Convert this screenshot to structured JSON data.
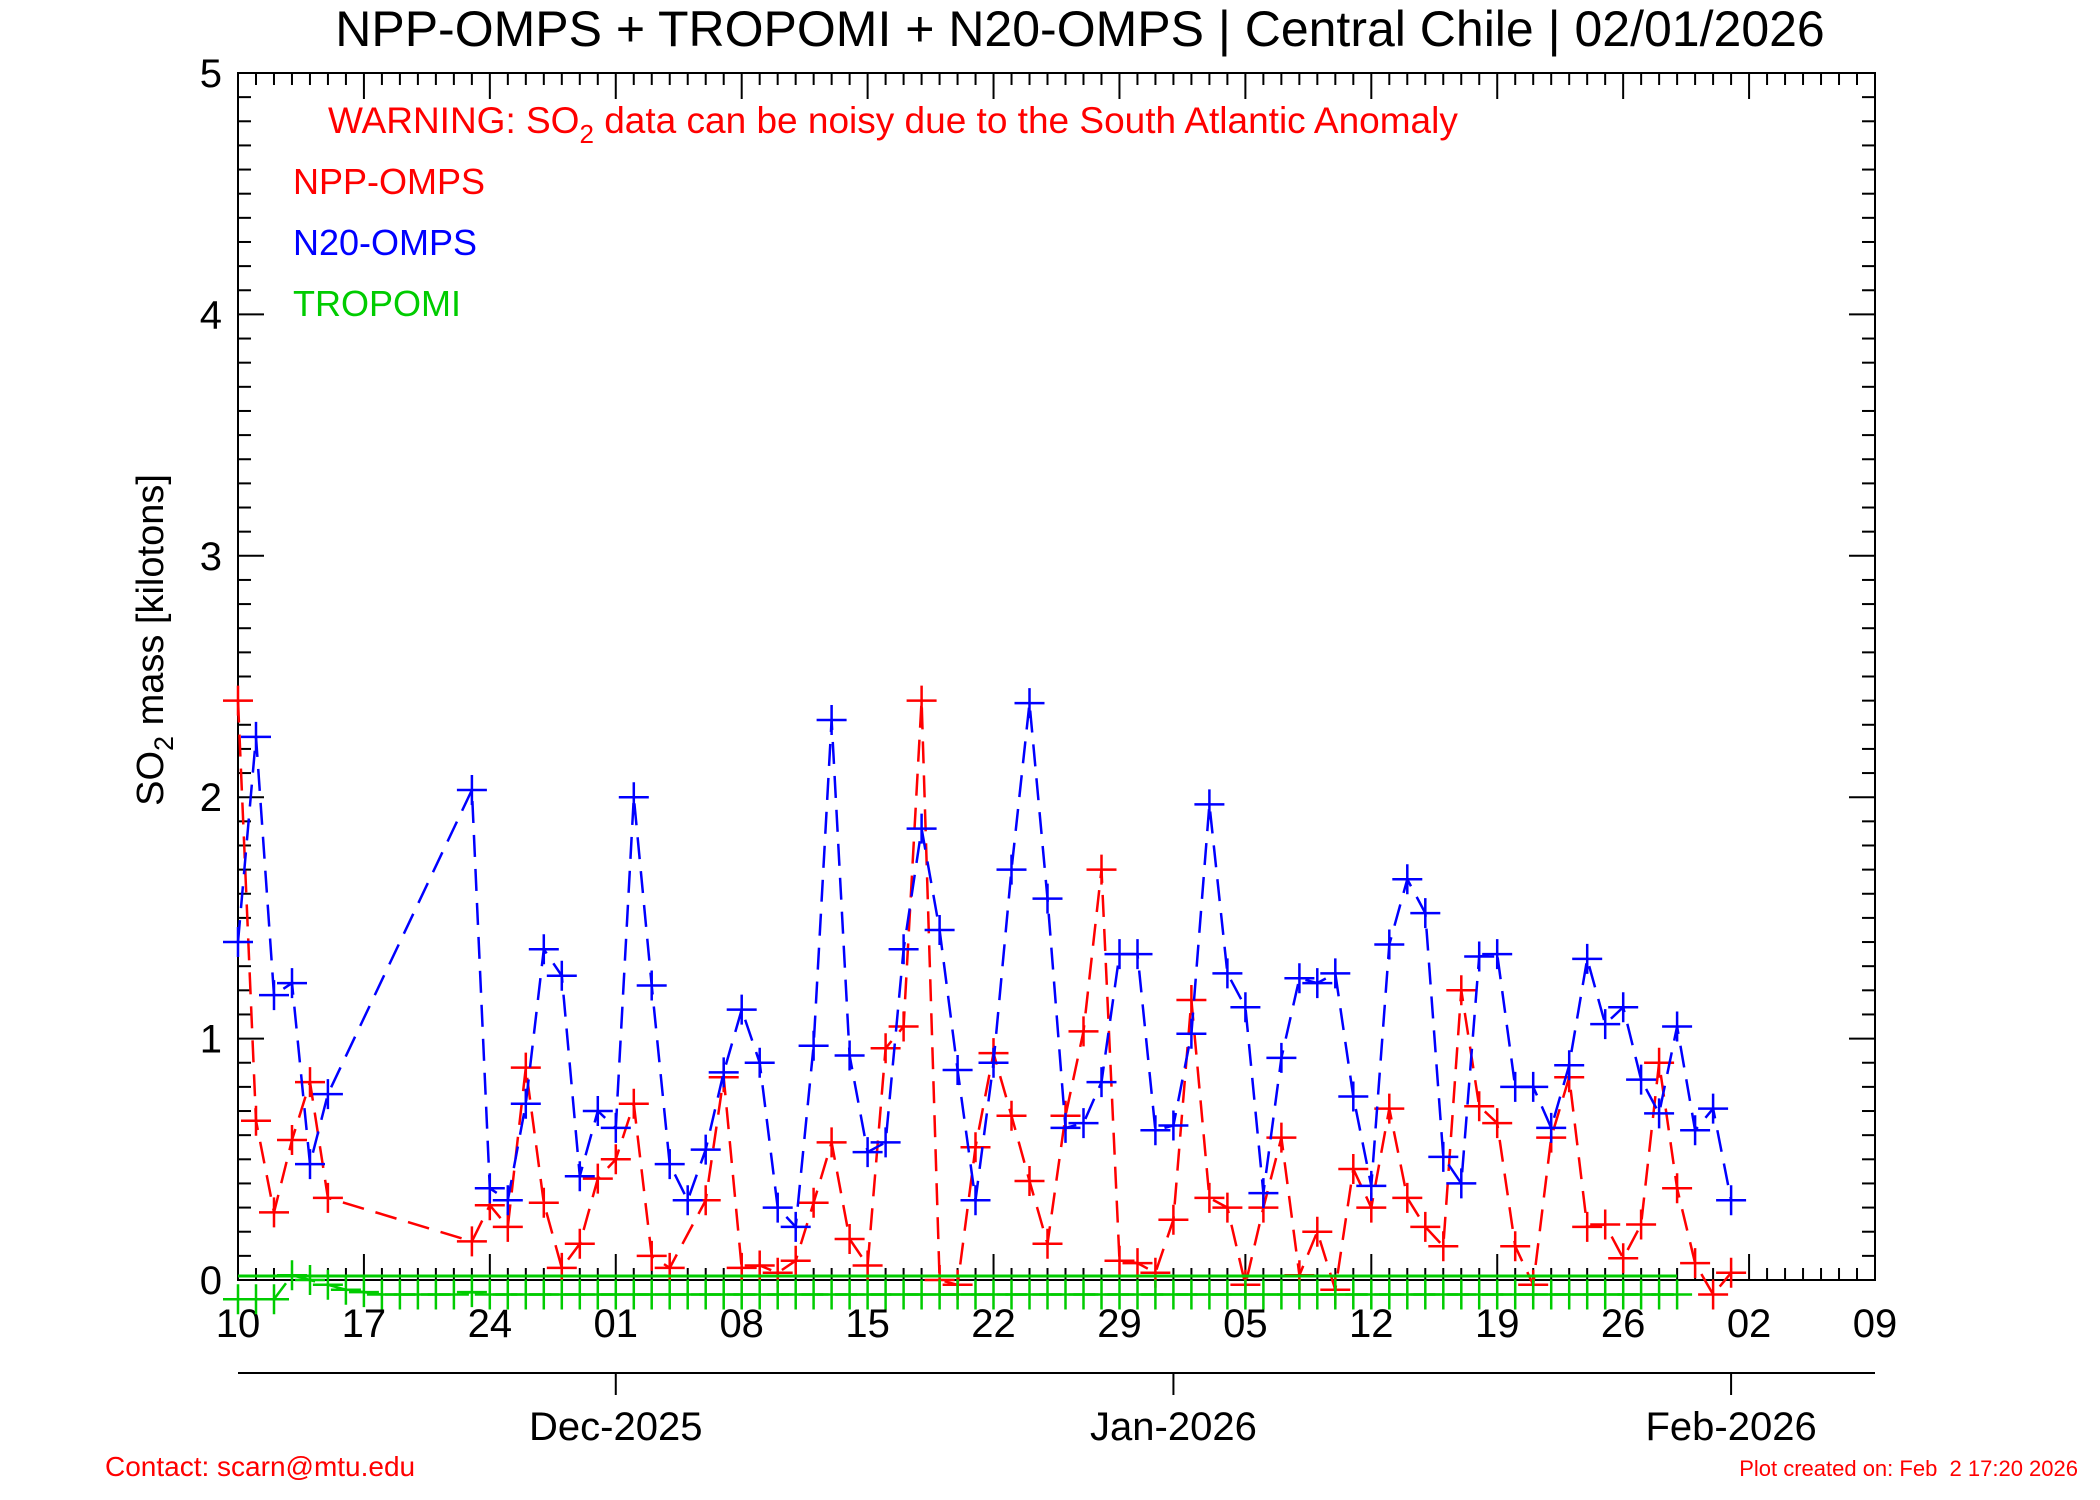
{
  "chart_data": {
    "type": "line",
    "title": "NPP-OMPS + TROPOMI + N20-OMPS | Central Chile | 02/01/2026",
    "warning": {
      "prefix": "WARNING: SO",
      "subscript": "2",
      "suffix": " data can be noisy due to the South Atlantic Anomaly"
    },
    "ylabel": {
      "prefix": "SO",
      "subscript": "2",
      "suffix": " mass [kilotons]"
    },
    "xlabel": "",
    "ylim": [
      0,
      5
    ],
    "xlim": [
      "2025-11-10",
      "2026-02-09"
    ],
    "grid": false,
    "y_ticks": [
      "0",
      "1",
      "2",
      "3",
      "4",
      "5"
    ],
    "x_ticks": [
      {
        "date": "2025-11-10",
        "label": "10"
      },
      {
        "date": "2025-11-17",
        "label": "17"
      },
      {
        "date": "2025-11-24",
        "label": "24"
      },
      {
        "date": "2025-12-01",
        "label": "01"
      },
      {
        "date": "2025-12-08",
        "label": "08"
      },
      {
        "date": "2025-12-15",
        "label": "15"
      },
      {
        "date": "2025-12-22",
        "label": "22"
      },
      {
        "date": "2025-12-29",
        "label": "29"
      },
      {
        "date": "2026-01-05",
        "label": "05"
      },
      {
        "date": "2026-01-12",
        "label": "12"
      },
      {
        "date": "2026-01-19",
        "label": "19"
      },
      {
        "date": "2026-01-26",
        "label": "26"
      },
      {
        "date": "2026-02-02",
        "label": "02"
      },
      {
        "date": "2026-02-09",
        "label": "09"
      }
    ],
    "month_ticks": [
      {
        "date": "2025-12-01",
        "label": "Dec-2025"
      },
      {
        "date": "2026-01-01",
        "label": "Jan-2026"
      },
      {
        "date": "2026-02-01",
        "label": "Feb-2026"
      }
    ],
    "legend": {
      "placement": "top-left"
    },
    "series": [
      {
        "name": "NPP-OMPS",
        "color": "#ff0000",
        "points": [
          [
            "2025-11-10",
            2.4
          ],
          [
            "2025-11-11",
            0.66
          ],
          [
            "2025-11-12",
            0.28
          ],
          [
            "2025-11-13",
            0.58
          ],
          [
            "2025-11-14",
            0.82
          ],
          [
            "2025-11-15",
            0.34
          ],
          [
            "2025-11-23",
            0.16
          ],
          [
            "2025-11-24",
            0.31
          ],
          [
            "2025-11-25",
            0.22
          ],
          [
            "2025-11-26",
            0.88
          ],
          [
            "2025-11-27",
            0.32
          ],
          [
            "2025-11-28",
            0.05
          ],
          [
            "2025-11-29",
            0.15
          ],
          [
            "2025-11-30",
            0.42
          ],
          [
            "2025-12-01",
            0.5
          ],
          [
            "2025-12-02",
            0.73
          ],
          [
            "2025-12-03",
            0.1
          ],
          [
            "2025-12-04",
            0.05
          ],
          [
            "2025-12-06",
            0.33
          ],
          [
            "2025-12-07",
            0.84
          ],
          [
            "2025-12-08",
            0.05
          ],
          [
            "2025-12-09",
            0.06
          ],
          [
            "2025-12-10",
            0.03
          ],
          [
            "2025-12-11",
            0.08
          ],
          [
            "2025-12-12",
            0.32
          ],
          [
            "2025-12-13",
            0.57
          ],
          [
            "2025-12-14",
            0.17
          ],
          [
            "2025-12-15",
            0.06
          ],
          [
            "2025-12-16",
            0.96
          ],
          [
            "2025-12-17",
            1.05
          ],
          [
            "2025-12-18",
            2.4
          ],
          [
            "2025-12-19",
            0.0
          ],
          [
            "2025-12-20",
            -0.02
          ],
          [
            "2025-12-21",
            0.55
          ],
          [
            "2025-12-22",
            0.94
          ],
          [
            "2025-12-23",
            0.68
          ],
          [
            "2025-12-24",
            0.41
          ],
          [
            "2025-12-25",
            0.15
          ],
          [
            "2025-12-26",
            0.68
          ],
          [
            "2025-12-27",
            1.03
          ],
          [
            "2025-12-28",
            1.7
          ],
          [
            "2025-12-29",
            0.08
          ],
          [
            "2025-12-30",
            0.07
          ],
          [
            "2025-12-31",
            0.03
          ],
          [
            "2026-01-01",
            0.25
          ],
          [
            "2026-01-02",
            1.16
          ],
          [
            "2026-01-03",
            0.34
          ],
          [
            "2026-01-04",
            0.3
          ],
          [
            "2026-01-05",
            -0.02
          ],
          [
            "2026-01-06",
            0.3
          ],
          [
            "2026-01-07",
            0.59
          ],
          [
            "2026-01-08",
            0.02
          ],
          [
            "2026-01-09",
            0.2
          ],
          [
            "2026-01-10",
            -0.04
          ],
          [
            "2026-01-11",
            0.46
          ],
          [
            "2026-01-12",
            0.3
          ],
          [
            "2026-01-13",
            0.71
          ],
          [
            "2026-01-14",
            0.34
          ],
          [
            "2026-01-15",
            0.22
          ],
          [
            "2026-01-16",
            0.14
          ],
          [
            "2026-01-17",
            1.2
          ],
          [
            "2026-01-18",
            0.72
          ],
          [
            "2026-01-19",
            0.65
          ],
          [
            "2026-01-20",
            0.14
          ],
          [
            "2026-01-21",
            -0.02
          ],
          [
            "2026-01-22",
            0.59
          ],
          [
            "2026-01-23",
            0.84
          ],
          [
            "2026-01-24",
            0.22
          ],
          [
            "2026-01-25",
            0.23
          ],
          [
            "2026-01-26",
            0.09
          ],
          [
            "2026-01-27",
            0.23
          ],
          [
            "2026-01-28",
            0.9
          ],
          [
            "2026-01-29",
            0.38
          ],
          [
            "2026-01-30",
            0.07
          ],
          [
            "2026-01-31",
            -0.06
          ],
          [
            "2026-02-01",
            0.03
          ]
        ]
      },
      {
        "name": "N20-OMPS",
        "color": "#0000ff",
        "points": [
          [
            "2025-11-10",
            1.4
          ],
          [
            "2025-11-11",
            2.25
          ],
          [
            "2025-11-12",
            1.18
          ],
          [
            "2025-11-13",
            1.23
          ],
          [
            "2025-11-14",
            0.48
          ],
          [
            "2025-11-15",
            0.77
          ],
          [
            "2025-11-23",
            2.03
          ],
          [
            "2025-11-24",
            0.38
          ],
          [
            "2025-11-25",
            0.33
          ],
          [
            "2025-11-26",
            0.73
          ],
          [
            "2025-11-27",
            1.37
          ],
          [
            "2025-11-28",
            1.26
          ],
          [
            "2025-11-29",
            0.43
          ],
          [
            "2025-11-30",
            0.7
          ],
          [
            "2025-12-01",
            0.63
          ],
          [
            "2025-12-02",
            2.0
          ],
          [
            "2025-12-03",
            1.22
          ],
          [
            "2025-12-04",
            0.48
          ],
          [
            "2025-12-05",
            0.33
          ],
          [
            "2025-12-06",
            0.54
          ],
          [
            "2025-12-07",
            0.86
          ],
          [
            "2025-12-08",
            1.12
          ],
          [
            "2025-12-09",
            0.9
          ],
          [
            "2025-12-10",
            0.3
          ],
          [
            "2025-12-11",
            0.22
          ],
          [
            "2025-12-12",
            0.97
          ],
          [
            "2025-12-13",
            2.32
          ],
          [
            "2025-12-14",
            0.93
          ],
          [
            "2025-12-15",
            0.53
          ],
          [
            "2025-12-16",
            0.57
          ],
          [
            "2025-12-17",
            1.37
          ],
          [
            "2025-12-18",
            1.87
          ],
          [
            "2025-12-19",
            1.45
          ],
          [
            "2025-12-20",
            0.87
          ],
          [
            "2025-12-21",
            0.33
          ],
          [
            "2025-12-22",
            0.9
          ],
          [
            "2025-12-23",
            1.7
          ],
          [
            "2025-12-24",
            2.39
          ],
          [
            "2025-12-25",
            1.58
          ],
          [
            "2025-12-26",
            0.63
          ],
          [
            "2025-12-27",
            0.65
          ],
          [
            "2025-12-28",
            0.82
          ],
          [
            "2025-12-29",
            1.35
          ],
          [
            "2025-12-30",
            1.35
          ],
          [
            "2025-12-31",
            0.62
          ],
          [
            "2026-01-01",
            0.64
          ],
          [
            "2026-01-02",
            1.02
          ],
          [
            "2026-01-03",
            1.97
          ],
          [
            "2026-01-04",
            1.27
          ],
          [
            "2026-01-05",
            1.13
          ],
          [
            "2026-01-06",
            0.36
          ],
          [
            "2026-01-07",
            0.92
          ],
          [
            "2026-01-08",
            1.25
          ],
          [
            "2026-01-09",
            1.23
          ],
          [
            "2026-01-10",
            1.27
          ],
          [
            "2026-01-11",
            0.76
          ],
          [
            "2026-01-12",
            0.39
          ],
          [
            "2026-01-13",
            1.39
          ],
          [
            "2026-01-14",
            1.66
          ],
          [
            "2026-01-15",
            1.52
          ],
          [
            "2026-01-16",
            0.51
          ],
          [
            "2026-01-17",
            0.4
          ],
          [
            "2026-01-18",
            1.34
          ],
          [
            "2026-01-19",
            1.35
          ],
          [
            "2026-01-20",
            0.8
          ],
          [
            "2026-01-21",
            0.8
          ],
          [
            "2026-01-22",
            0.63
          ],
          [
            "2026-01-23",
            0.89
          ],
          [
            "2026-01-24",
            1.33
          ],
          [
            "2026-01-25",
            1.06
          ],
          [
            "2026-01-26",
            1.13
          ],
          [
            "2026-01-27",
            0.83
          ],
          [
            "2026-01-28",
            0.69
          ],
          [
            "2026-01-29",
            1.05
          ],
          [
            "2026-01-30",
            0.62
          ],
          [
            "2026-01-31",
            0.71
          ],
          [
            "2026-02-01",
            0.33
          ]
        ]
      },
      {
        "name": "TROPOMI",
        "color": "#00cc00",
        "points": [
          [
            "2025-11-10",
            -0.08
          ],
          [
            "2025-11-11",
            -0.08
          ],
          [
            "2025-11-12",
            -0.08
          ],
          [
            "2025-11-13",
            0.02
          ],
          [
            "2025-11-14",
            0.0
          ],
          [
            "2025-11-15",
            -0.02
          ],
          [
            "2025-11-16",
            -0.04
          ],
          [
            "2025-11-17",
            -0.05
          ],
          [
            "2025-11-18",
            -0.06
          ],
          [
            "2025-11-19",
            -0.06
          ],
          [
            "2025-11-20",
            -0.06
          ],
          [
            "2025-11-21",
            -0.06
          ],
          [
            "2025-11-22",
            -0.06
          ],
          [
            "2025-11-23",
            -0.05
          ],
          [
            "2025-11-24",
            -0.06
          ],
          [
            "2025-11-25",
            -0.06
          ],
          [
            "2025-11-26",
            -0.06
          ],
          [
            "2025-11-27",
            -0.06
          ],
          [
            "2025-11-28",
            -0.06
          ],
          [
            "2025-11-29",
            -0.06
          ],
          [
            "2025-11-30",
            -0.06
          ],
          [
            "2025-12-01",
            -0.06
          ],
          [
            "2025-12-02",
            -0.06
          ],
          [
            "2025-12-03",
            -0.06
          ],
          [
            "2025-12-04",
            -0.06
          ],
          [
            "2025-12-05",
            -0.06
          ],
          [
            "2025-12-06",
            -0.06
          ],
          [
            "2025-12-07",
            -0.06
          ],
          [
            "2025-12-08",
            -0.06
          ],
          [
            "2025-12-09",
            -0.06
          ],
          [
            "2025-12-10",
            -0.06
          ],
          [
            "2025-12-11",
            -0.06
          ],
          [
            "2025-12-12",
            -0.06
          ],
          [
            "2025-12-13",
            -0.06
          ],
          [
            "2025-12-14",
            -0.06
          ],
          [
            "2025-12-15",
            -0.06
          ],
          [
            "2025-12-16",
            -0.06
          ],
          [
            "2025-12-17",
            -0.06
          ],
          [
            "2025-12-18",
            -0.06
          ],
          [
            "2025-12-19",
            -0.06
          ],
          [
            "2025-12-20",
            -0.06
          ],
          [
            "2025-12-21",
            -0.06
          ],
          [
            "2025-12-22",
            -0.06
          ],
          [
            "2025-12-23",
            -0.06
          ],
          [
            "2025-12-24",
            -0.06
          ],
          [
            "2025-12-25",
            -0.06
          ],
          [
            "2025-12-26",
            -0.06
          ],
          [
            "2025-12-27",
            -0.06
          ],
          [
            "2025-12-28",
            -0.06
          ],
          [
            "2025-12-29",
            -0.06
          ],
          [
            "2025-12-30",
            -0.06
          ],
          [
            "2025-12-31",
            -0.06
          ],
          [
            "2026-01-01",
            -0.06
          ],
          [
            "2026-01-02",
            -0.06
          ],
          [
            "2026-01-03",
            -0.06
          ],
          [
            "2026-01-04",
            -0.06
          ],
          [
            "2026-01-05",
            -0.06
          ],
          [
            "2026-01-06",
            -0.06
          ],
          [
            "2026-01-07",
            -0.06
          ],
          [
            "2026-01-08",
            -0.06
          ],
          [
            "2026-01-09",
            -0.06
          ],
          [
            "2026-01-10",
            -0.06
          ],
          [
            "2026-01-11",
            -0.06
          ],
          [
            "2026-01-12",
            -0.06
          ],
          [
            "2026-01-13",
            -0.06
          ],
          [
            "2026-01-14",
            -0.06
          ],
          [
            "2026-01-15",
            -0.06
          ],
          [
            "2026-01-16",
            -0.06
          ],
          [
            "2026-01-17",
            -0.06
          ],
          [
            "2026-01-18",
            -0.06
          ],
          [
            "2026-01-19",
            -0.06
          ],
          [
            "2026-01-20",
            -0.06
          ],
          [
            "2026-01-21",
            -0.06
          ],
          [
            "2026-01-22",
            -0.06
          ],
          [
            "2026-01-23",
            -0.06
          ],
          [
            "2026-01-24",
            -0.06
          ],
          [
            "2026-01-25",
            -0.06
          ],
          [
            "2026-01-26",
            -0.06
          ],
          [
            "2026-01-27",
            -0.06
          ],
          [
            "2026-01-28",
            -0.06
          ],
          [
            "2026-01-29",
            -0.06
          ]
        ]
      }
    ]
  },
  "footer": {
    "contact": "Contact: scarn@mtu.edu",
    "created": "Plot created on: Feb  2 17:20 2026"
  }
}
